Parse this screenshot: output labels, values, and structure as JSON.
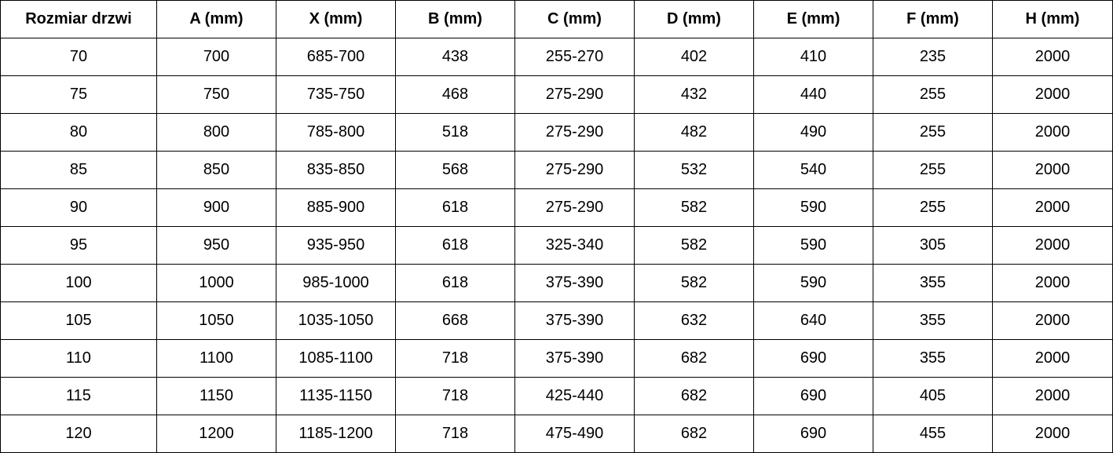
{
  "table": {
    "header": [
      "Rozmiar drzwi",
      "A (mm)",
      "X (mm)",
      "B (mm)",
      "C (mm)",
      "D (mm)",
      "E (mm)",
      "F (mm)",
      "H (mm)"
    ],
    "rows": [
      [
        "70",
        "700",
        "685-700",
        "438",
        "255-270",
        "402",
        "410",
        "235",
        "2000"
      ],
      [
        "75",
        "750",
        "735-750",
        "468",
        "275-290",
        "432",
        "440",
        "255",
        "2000"
      ],
      [
        "80",
        "800",
        "785-800",
        "518",
        "275-290",
        "482",
        "490",
        "255",
        "2000"
      ],
      [
        "85",
        "850",
        "835-850",
        "568",
        "275-290",
        "532",
        "540",
        "255",
        "2000"
      ],
      [
        "90",
        "900",
        "885-900",
        "618",
        "275-290",
        "582",
        "590",
        "255",
        "2000"
      ],
      [
        "95",
        "950",
        "935-950",
        "618",
        "325-340",
        "582",
        "590",
        "305",
        "2000"
      ],
      [
        "100",
        "1000",
        "985-1000",
        "618",
        "375-390",
        "582",
        "590",
        "355",
        "2000"
      ],
      [
        "105",
        "1050",
        "1035-1050",
        "668",
        "375-390",
        "632",
        "640",
        "355",
        "2000"
      ],
      [
        "110",
        "1100",
        "1085-1100",
        "718",
        "375-390",
        "682",
        "690",
        "355",
        "2000"
      ],
      [
        "115",
        "1150",
        "1135-1150",
        "718",
        "425-440",
        "682",
        "690",
        "405",
        "2000"
      ],
      [
        "120",
        "1200",
        "1185-1200",
        "718",
        "475-490",
        "682",
        "690",
        "455",
        "2000"
      ]
    ]
  }
}
